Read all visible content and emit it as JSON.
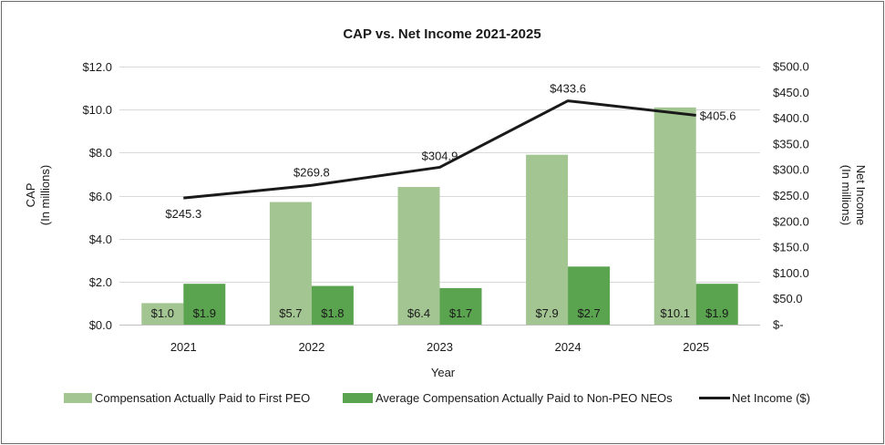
{
  "chart_data": {
    "type": "bar",
    "title": "CAP vs. Net Income 2021-2025",
    "xlabel": "Year",
    "ylabel_line1": "CAP",
    "ylabel_line2": "(In millions)",
    "y2label_line1": "Net Income",
    "y2label_line2": "(In millions)",
    "categories": [
      "2021",
      "2022",
      "2023",
      "2024",
      "2025"
    ],
    "ylim": [
      0,
      12
    ],
    "y2lim": [
      0,
      500
    ],
    "yticks": [
      {
        "value": 0,
        "label": "$0.0"
      },
      {
        "value": 2,
        "label": "$2.0"
      },
      {
        "value": 4,
        "label": "$4.0"
      },
      {
        "value": 6,
        "label": "$6.0"
      },
      {
        "value": 8,
        "label": "$8.0"
      },
      {
        "value": 10,
        "label": "$10.0"
      },
      {
        "value": 12,
        "label": "$12.0"
      }
    ],
    "y2ticks": [
      {
        "value": 0,
        "label": "$-"
      },
      {
        "value": 50,
        "label": "$50.0"
      },
      {
        "value": 100,
        "label": "$100.0"
      },
      {
        "value": 150,
        "label": "$150.0"
      },
      {
        "value": 200,
        "label": "$200.0"
      },
      {
        "value": 250,
        "label": "$250.0"
      },
      {
        "value": 300,
        "label": "$300.0"
      },
      {
        "value": 350,
        "label": "$350.0"
      },
      {
        "value": 400,
        "label": "$400.0"
      },
      {
        "value": 450,
        "label": "$450.0"
      },
      {
        "value": 500,
        "label": "$500.0"
      }
    ],
    "grid": true,
    "legend_position": "bottom",
    "bar_series": [
      {
        "name": "Compensation Actually Paid to First PEO",
        "color": "#a3c592",
        "values": [
          1.0,
          5.7,
          6.4,
          7.9,
          10.1
        ],
        "labels": [
          "$1.0",
          "$5.7",
          "$6.4",
          "$7.9",
          "$10.1"
        ]
      },
      {
        "name": "Average Compensation Actually Paid to Non-PEO NEOs",
        "color": "#5aa34f",
        "values": [
          1.9,
          1.8,
          1.7,
          2.7,
          1.9
        ],
        "labels": [
          "$1.9",
          "$1.8",
          "$1.7",
          "$2.7",
          "$1.9"
        ]
      }
    ],
    "line_series": {
      "name": "Net Income ($)",
      "color": "#1a1a1a",
      "axis": "secondary",
      "values": [
        245.3,
        269.8,
        304.9,
        433.6,
        405.6
      ],
      "labels": [
        "$245.3",
        "$269.8",
        "$304.9",
        "$433.6",
        "$405.6"
      ]
    }
  }
}
